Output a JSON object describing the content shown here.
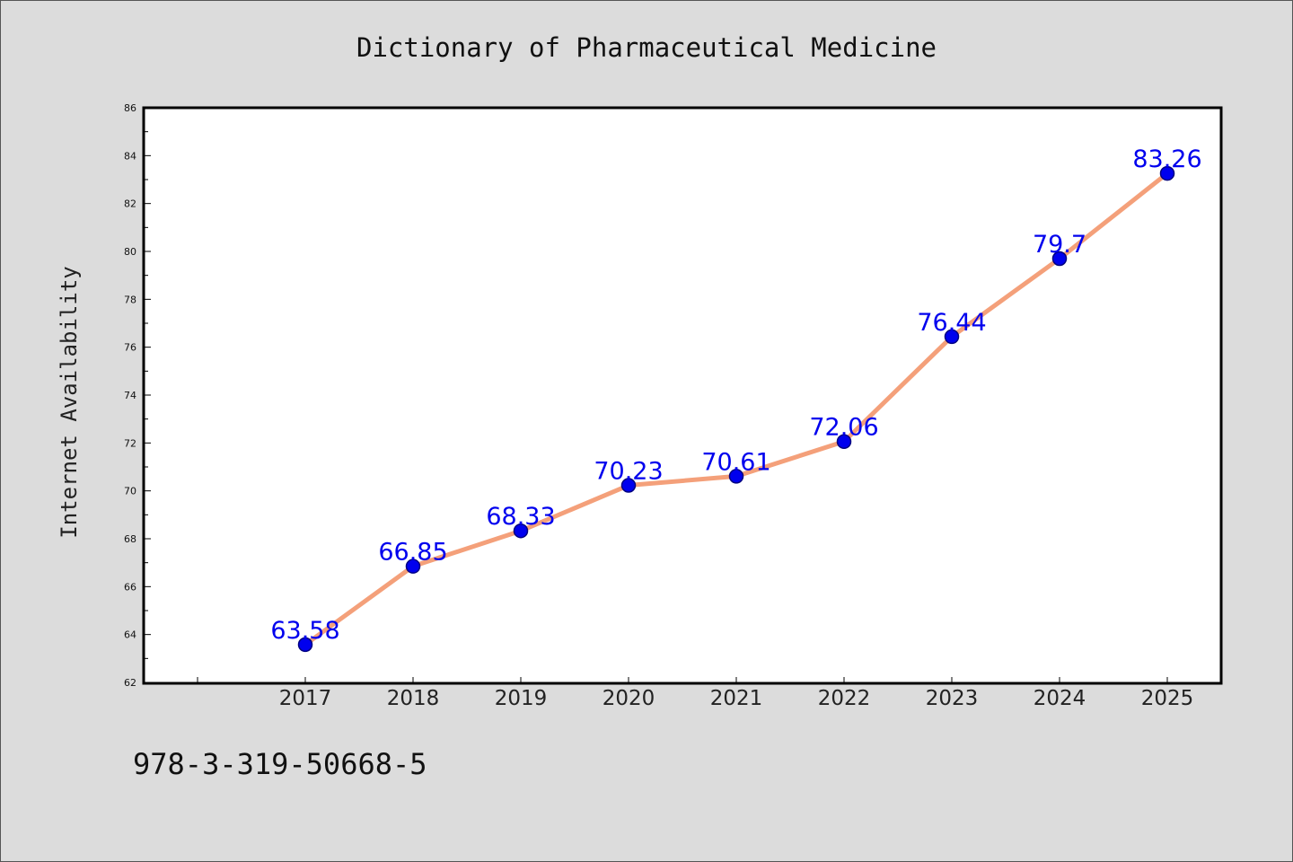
{
  "chart_data": {
    "type": "line",
    "title": "Dictionary of Pharmaceutical Medicine",
    "xlabel": "",
    "ylabel": "Internet Availability",
    "categories": [
      "2017",
      "2018",
      "2019",
      "2020",
      "2021",
      "2022",
      "2023",
      "2024",
      "2025"
    ],
    "values": [
      63.58,
      66.85,
      68.33,
      70.23,
      70.61,
      72.06,
      76.44,
      79.7,
      83.26
    ],
    "data_labels": [
      "63.58",
      "66.85",
      "68.33",
      "70.23",
      "70.61",
      "72.06",
      "76.44",
      "79.7",
      "83.26"
    ],
    "ylim": [
      62,
      86
    ],
    "yticks": [
      62,
      64,
      66,
      68,
      70,
      72,
      74,
      76,
      78,
      80,
      82,
      84,
      86
    ],
    "grid": false,
    "colors": {
      "line": "#f4a07a",
      "marker": "#0000ee",
      "marker_edge": "#000080",
      "label": "#0000ee",
      "plot_bg": "#ffffff",
      "page_bg": "#dcdcdc"
    }
  },
  "footer": {
    "isbn": "978-3-319-50668-5"
  }
}
